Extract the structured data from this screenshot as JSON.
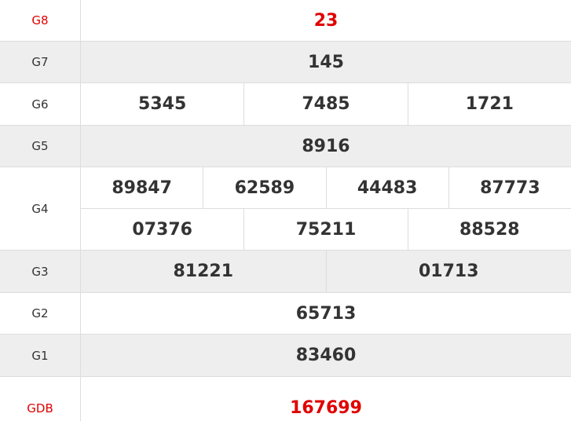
{
  "colors": {
    "highlight": "#e00000",
    "alt_row": "#eeeeee",
    "text": "#333333"
  },
  "prizes": [
    {
      "label": "G8",
      "lines": [
        [
          "23"
        ]
      ],
      "red": true
    },
    {
      "label": "G7",
      "lines": [
        [
          "145"
        ]
      ]
    },
    {
      "label": "G6",
      "lines": [
        [
          "5345",
          "7485",
          "1721"
        ]
      ]
    },
    {
      "label": "G5",
      "lines": [
        [
          "8916"
        ]
      ]
    },
    {
      "label": "G4",
      "lines": [
        [
          "89847",
          "62589",
          "44483",
          "87773"
        ],
        [
          "07376",
          "75211",
          "88528"
        ]
      ]
    },
    {
      "label": "G3",
      "lines": [
        [
          "81221",
          "01713"
        ]
      ]
    },
    {
      "label": "G2",
      "lines": [
        [
          "65713"
        ]
      ]
    },
    {
      "label": "G1",
      "lines": [
        [
          "83460"
        ]
      ]
    },
    {
      "label": "GDB",
      "lines": [
        [
          "167699"
        ]
      ],
      "red": true
    }
  ]
}
